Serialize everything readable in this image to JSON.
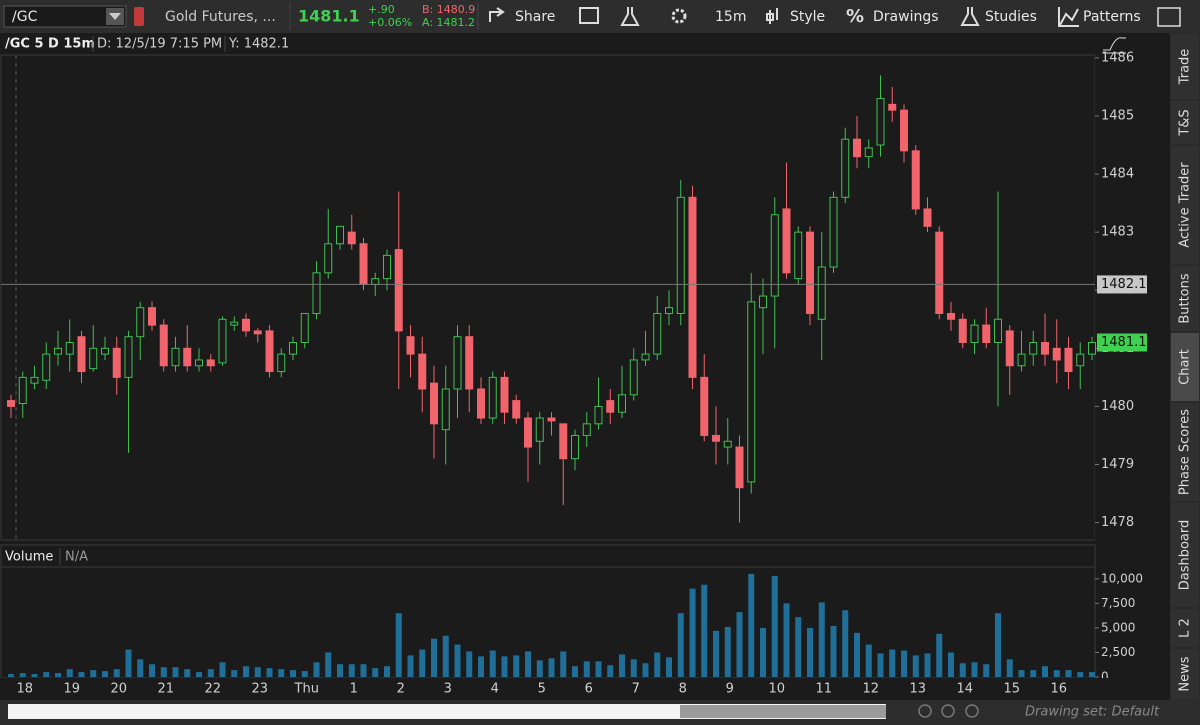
{
  "toolbar": {
    "symbol": "/GC",
    "description": "Gold Futures, ...",
    "last": 1481.1,
    "change": "+.90",
    "change_pct": "+0.06%",
    "bid": "B: 1480.9",
    "ask": "A: 1481.2",
    "buttons": [
      "Share",
      "15m",
      "Style",
      "Drawings",
      "Studies",
      "Patterns"
    ]
  },
  "header": {
    "study": "/GC 5 D 15m",
    "date": "D: 12/5/19 7:15 PM",
    "y": "Y: 1482.1"
  },
  "chart_data": [
    {
      "type": "candlestick",
      "categories": [
        null,
        "18",
        null,
        null,
        null,
        "19",
        null,
        null,
        null,
        "20",
        null,
        null,
        null,
        "21",
        null,
        null,
        null,
        "22",
        null,
        null,
        null,
        "23",
        null,
        null,
        null,
        "Thu",
        null,
        null,
        null,
        "1",
        null,
        null,
        null,
        "2",
        null,
        null,
        null,
        "3",
        null,
        null,
        null,
        "4",
        null,
        null,
        null,
        "5",
        null,
        null,
        null,
        "6",
        null,
        null,
        null,
        "7",
        null,
        null,
        null,
        "8",
        null,
        null,
        null,
        "9",
        null,
        null,
        null,
        "10",
        null,
        null,
        null,
        "11",
        null,
        null,
        null,
        "12",
        null,
        null,
        null,
        "13",
        null,
        null,
        null,
        "14",
        null,
        null,
        null,
        "15",
        null,
        null,
        null,
        "16",
        null,
        null,
        null
      ],
      "open": [
        1480.1,
        1480.05,
        1480.4,
        1480.45,
        1480.9,
        1480.9,
        1481.2,
        1480.65,
        1480.9,
        1481.0,
        1480.5,
        1481.2,
        1481.7,
        1481.4,
        1480.7,
        1481.0,
        1480.7,
        1480.8,
        1480.75,
        1481.4,
        1481.5,
        1481.3,
        1481.3,
        1480.6,
        1480.9,
        1481.1,
        1481.6,
        1482.3,
        1482.8,
        1483.0,
        1482.8,
        1482.1,
        1482.2,
        1482.7,
        1481.2,
        1480.9,
        1480.4,
        1479.6,
        1480.3,
        1481.2,
        1480.3,
        1479.8,
        1480.5,
        1480.1,
        1479.8,
        1479.4,
        1479.8,
        1479.7,
        1479.1,
        1479.5,
        1479.7,
        1480.1,
        1479.9,
        1480.2,
        1480.8,
        1480.9,
        1481.6,
        1481.6,
        1483.6,
        1480.5,
        1479.5,
        1479.3,
        1479.3,
        1478.7,
        1481.7,
        1481.9,
        1483.4,
        1482.2,
        1483.0,
        1481.5,
        1482.4,
        1483.6,
        1484.6,
        1484.3,
        1484.5,
        1485.2,
        1485.1,
        1484.4,
        1483.4,
        1483.0,
        1481.6,
        1481.5,
        1481.1,
        1481.4,
        1481.1,
        1481.3,
        1480.7,
        1480.9,
        1481.1,
        1481.0,
        1481.0,
        1480.7,
        1480.9
      ],
      "high": [
        1480.2,
        1480.6,
        1480.7,
        1481.1,
        1481.3,
        1481.5,
        1481.3,
        1481.4,
        1481.2,
        1481.2,
        1481.3,
        1481.8,
        1481.8,
        1481.5,
        1481.2,
        1481.4,
        1481.0,
        1480.9,
        1481.55,
        1481.55,
        1481.6,
        1481.35,
        1481.4,
        1481.0,
        1481.2,
        1481.6,
        1482.5,
        1483.4,
        1483.1,
        1483.3,
        1482.9,
        1482.3,
        1482.7,
        1483.7,
        1481.4,
        1481.2,
        1480.7,
        1480.7,
        1481.4,
        1481.4,
        1480.5,
        1480.6,
        1480.6,
        1480.2,
        1479.9,
        1479.9,
        1479.9,
        1479.7,
        1479.6,
        1479.9,
        1480.5,
        1480.3,
        1480.7,
        1481.0,
        1481.3,
        1481.9,
        1482.0,
        1483.9,
        1483.8,
        1480.9,
        1480.0,
        1479.8,
        1479.5,
        1482.3,
        1482.2,
        1483.6,
        1484.2,
        1483.1,
        1483.1,
        1483.0,
        1483.7,
        1484.8,
        1485.0,
        1484.6,
        1485.7,
        1485.5,
        1485.2,
        1484.5,
        1483.6,
        1483.1,
        1481.8,
        1481.6,
        1481.5,
        1481.7,
        1483.7,
        1481.4,
        1481.3,
        1481.3,
        1481.6,
        1481.5,
        1481.2,
        1481.1,
        1481.2
      ],
      "low": [
        1479.8,
        1479.8,
        1480.3,
        1480.3,
        1480.7,
        1480.6,
        1480.4,
        1480.6,
        1480.8,
        1480.2,
        1479.2,
        1480.8,
        1481.3,
        1480.6,
        1480.6,
        1480.6,
        1480.6,
        1480.6,
        1480.7,
        1481.3,
        1481.2,
        1481.1,
        1480.5,
        1480.5,
        1480.8,
        1481.0,
        1481.5,
        1482.2,
        1482.7,
        1482.7,
        1482.0,
        1481.9,
        1482.0,
        1480.3,
        1480.5,
        1479.9,
        1479.1,
        1479.0,
        1479.8,
        1479.9,
        1479.7,
        1479.7,
        1479.7,
        1479.7,
        1478.7,
        1479.0,
        1479.5,
        1478.3,
        1478.9,
        1479.3,
        1479.6,
        1479.7,
        1479.8,
        1480.1,
        1480.7,
        1480.8,
        1481.4,
        1481.4,
        1480.3,
        1479.4,
        1479.0,
        1479.0,
        1478.0,
        1478.5,
        1480.9,
        1481.0,
        1482.2,
        1482.1,
        1481.4,
        1480.8,
        1482.3,
        1483.5,
        1484.1,
        1484.1,
        1484.3,
        1484.9,
        1484.2,
        1483.3,
        1483.0,
        1481.5,
        1481.3,
        1481.0,
        1480.9,
        1481.0,
        1480.0,
        1480.2,
        1480.6,
        1480.7,
        1480.7,
        1480.4,
        1480.3,
        1480.3,
        1480.8
      ],
      "close": [
        1480.0,
        1480.5,
        1480.5,
        1480.9,
        1481.0,
        1481.1,
        1480.6,
        1481.0,
        1481.0,
        1480.5,
        1481.2,
        1481.7,
        1481.4,
        1480.7,
        1481.0,
        1480.7,
        1480.8,
        1480.7,
        1481.5,
        1481.45,
        1481.3,
        1481.25,
        1480.6,
        1480.9,
        1481.1,
        1481.6,
        1482.3,
        1482.8,
        1483.1,
        1482.8,
        1482.1,
        1482.2,
        1482.6,
        1481.3,
        1480.9,
        1480.3,
        1479.7,
        1480.3,
        1481.2,
        1480.3,
        1479.8,
        1480.5,
        1479.9,
        1479.8,
        1479.3,
        1479.8,
        1479.75,
        1479.1,
        1479.5,
        1479.7,
        1480.0,
        1479.9,
        1480.2,
        1480.8,
        1480.9,
        1481.6,
        1481.7,
        1483.6,
        1480.5,
        1479.5,
        1479.4,
        1479.4,
        1478.6,
        1481.8,
        1481.9,
        1483.3,
        1482.3,
        1483.0,
        1481.6,
        1482.4,
        1483.6,
        1484.6,
        1484.3,
        1484.45,
        1485.3,
        1485.1,
        1484.4,
        1483.4,
        1483.1,
        1481.6,
        1481.5,
        1481.1,
        1481.4,
        1481.1,
        1481.5,
        1480.7,
        1480.9,
        1481.1,
        1480.9,
        1480.8,
        1480.6,
        1480.9,
        1481.1
      ],
      "up_color": "#3fbf4f",
      "down_color": "#f2646c",
      "ylim": [
        1477.7,
        1486.05
      ],
      "yticks": [
        1478,
        1479,
        1480,
        1481,
        1482,
        1483,
        1484,
        1485,
        1486
      ],
      "crosshair": 1482.1
    },
    {
      "type": "bar",
      "title": "Volume",
      "subtitle": "N/A",
      "color": "#1f6f99",
      "values": [
        300,
        400,
        300,
        500,
        400,
        800,
        500,
        700,
        600,
        800,
        2800,
        1800,
        1300,
        1000,
        1000,
        800,
        500,
        800,
        1500,
        700,
        1100,
        1000,
        900,
        800,
        700,
        600,
        1500,
        2500,
        1300,
        1300,
        1300,
        900,
        1100,
        6500,
        2200,
        2800,
        3900,
        4200,
        3300,
        2600,
        2100,
        2700,
        2100,
        2200,
        2600,
        1700,
        1900,
        2600,
        1100,
        1600,
        1600,
        1200,
        2300,
        1800,
        1400,
        2500,
        2000,
        6500,
        9000,
        9400,
        4700,
        5100,
        6600,
        10500,
        5000,
        10300,
        7500,
        6100,
        5000,
        7600,
        5200,
        6800,
        4500,
        3300,
        2400,
        2800,
        2700,
        2200,
        2400,
        4400,
        2500,
        1400,
        1500,
        1300,
        6500,
        1800,
        700,
        700,
        1100,
        700,
        700,
        500,
        500
      ],
      "ylim": [
        0,
        11100
      ],
      "yticks": [
        0,
        {
          "value": 2500,
          "label": "2,500"
        },
        {
          "value": 5000,
          "label": "5,000"
        },
        {
          "value": 7500,
          "label": "7,500"
        },
        {
          "value": 10000,
          "label": "10,000"
        }
      ]
    }
  ],
  "side_tabs": [
    "Trade",
    "T&S",
    "Active Trader",
    "Buttons",
    "Chart",
    "Phase Scores",
    "Dashboard",
    "L 2",
    "News"
  ],
  "footer": {
    "drawing_set": "Drawing set: Default"
  }
}
